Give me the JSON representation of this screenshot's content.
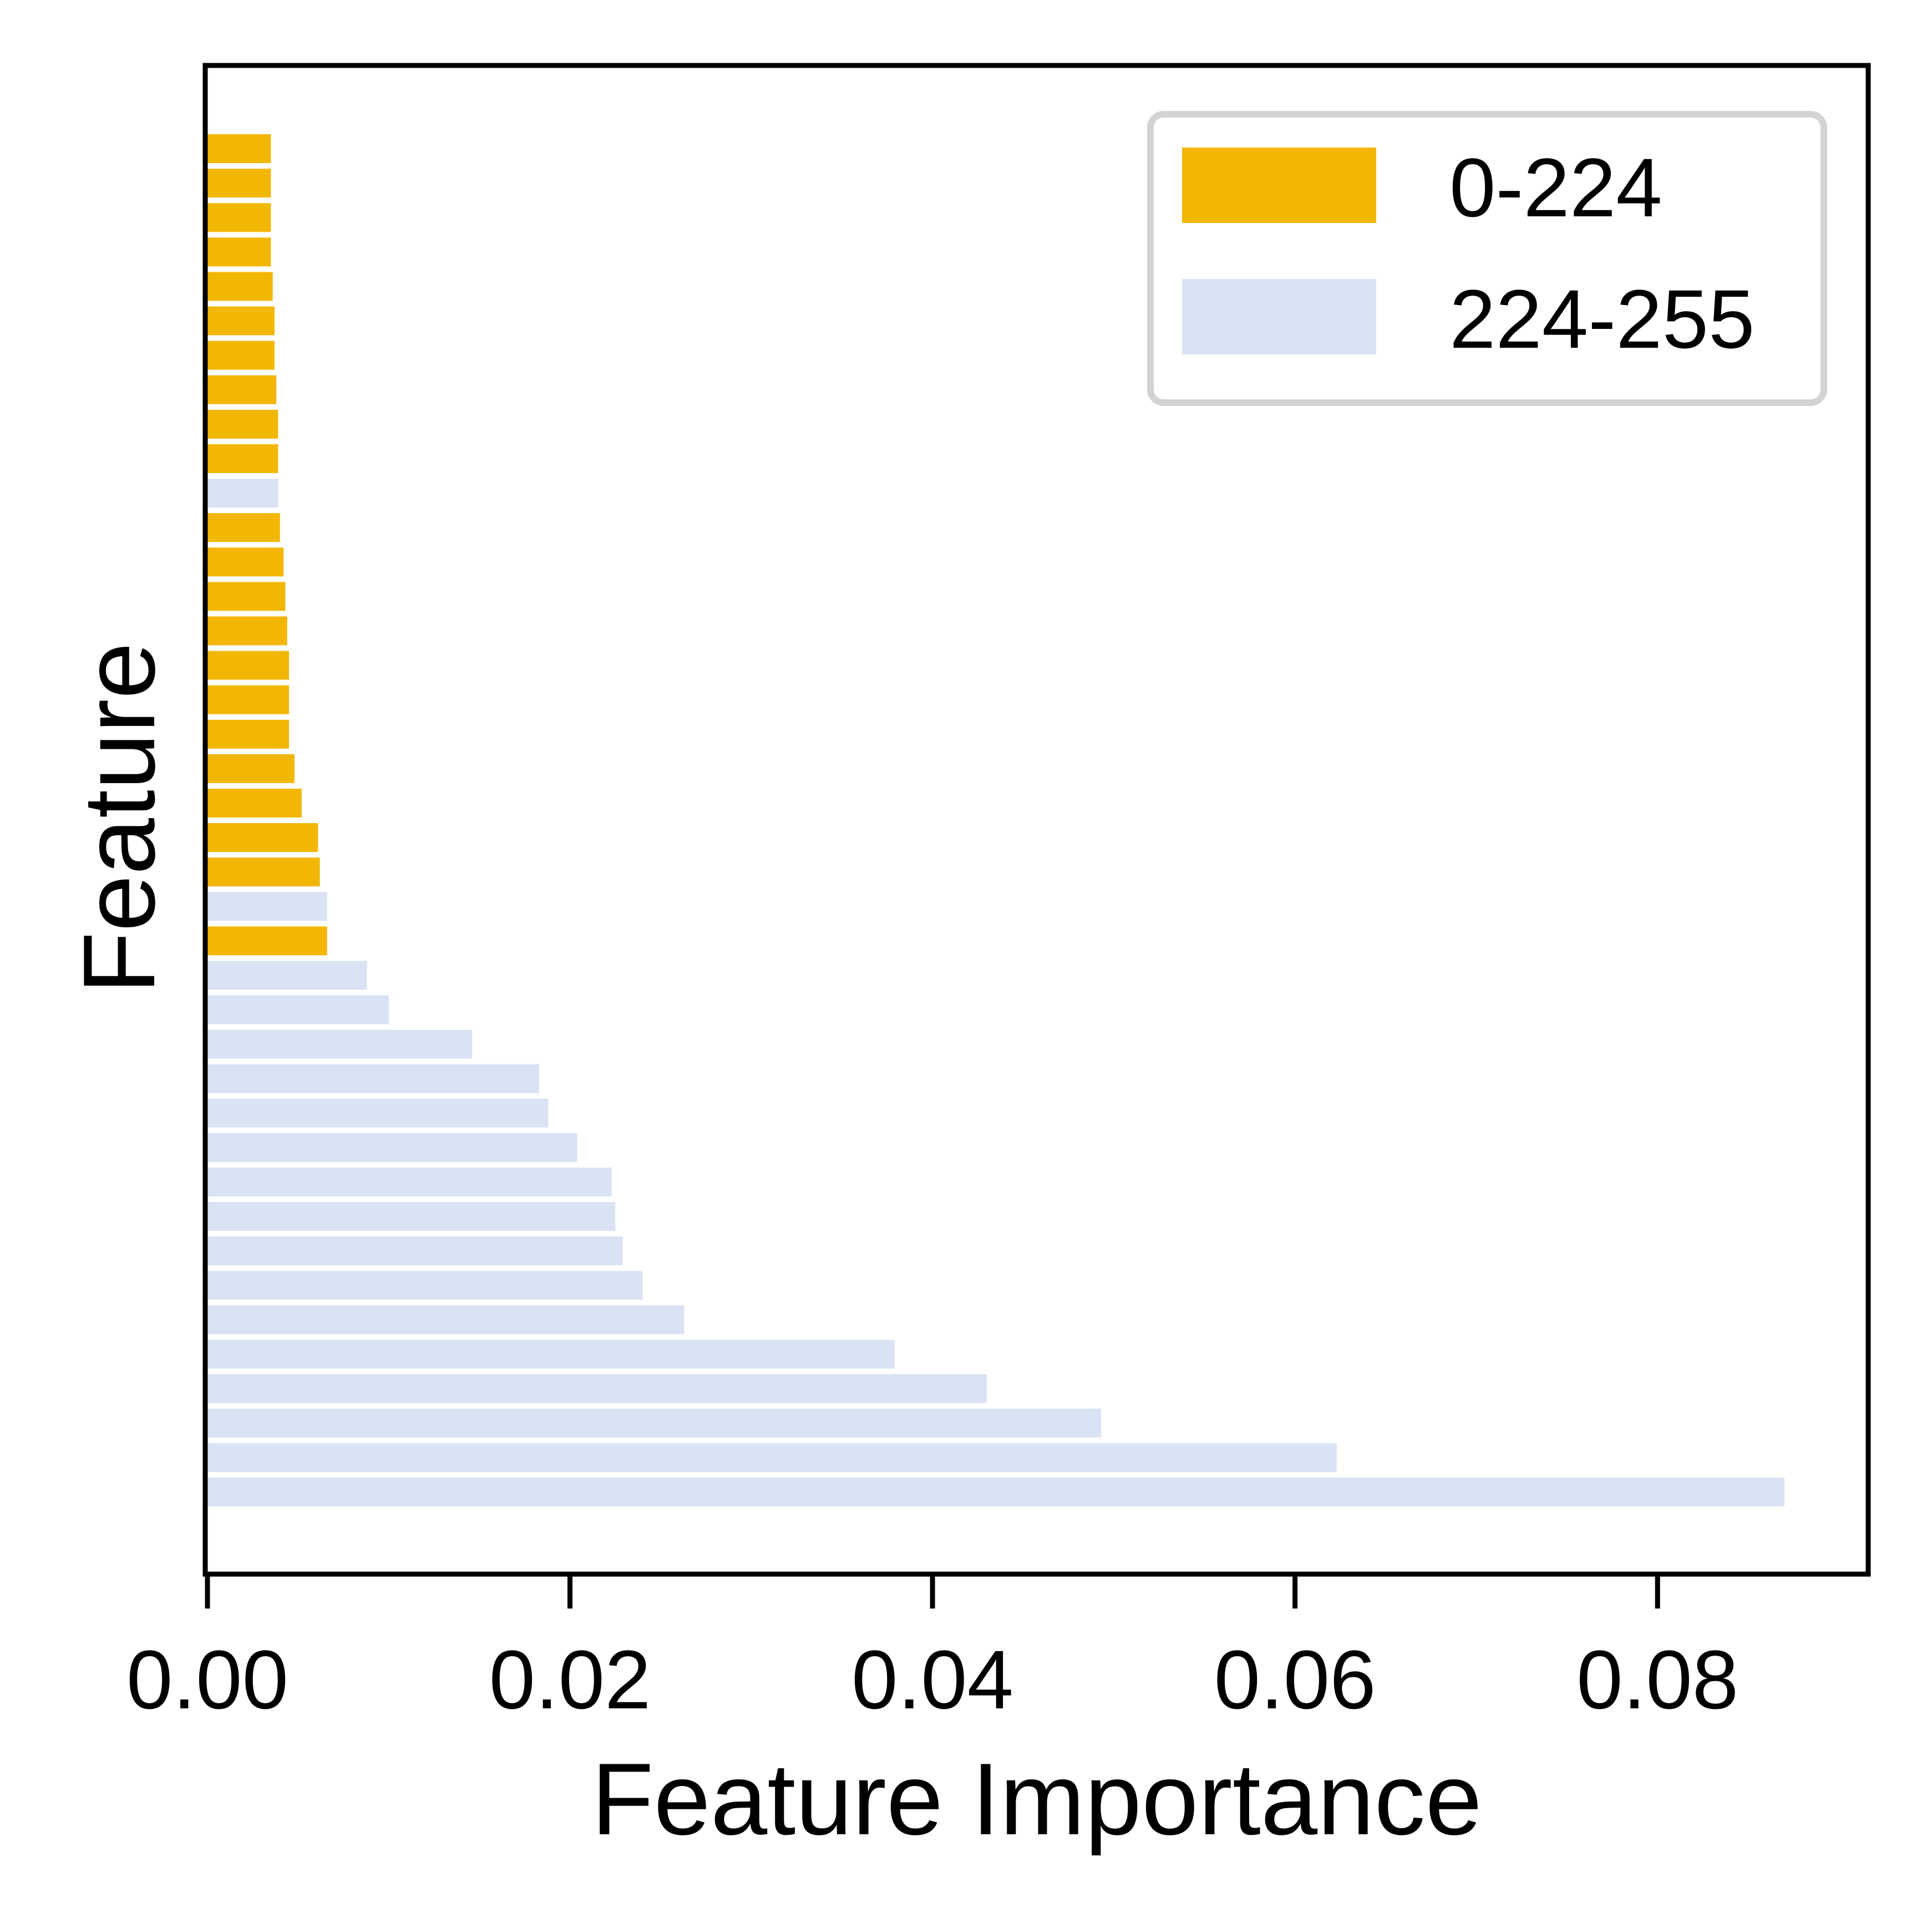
{
  "chart_data": {
    "type": "bar",
    "orientation": "horizontal",
    "title": "",
    "xlabel": "Feature Importance",
    "ylabel": "Feature",
    "xlim": [
      0,
      0.0915
    ],
    "xticks": [
      0.0,
      0.02,
      0.04,
      0.06,
      0.08
    ],
    "xtick_labels": [
      "0.00",
      "0.02",
      "0.04",
      "0.06",
      "0.08"
    ],
    "y_tick_labels_shown": false,
    "grid": false,
    "legend_position": "top-right",
    "series": [
      {
        "name": "0-224",
        "color": "#f2b705"
      },
      {
        "name": "224-255",
        "color": "#dae3f3"
      }
    ],
    "bars_top_to_bottom": [
      {
        "value": 0.0035,
        "group": 0
      },
      {
        "value": 0.0035,
        "group": 0
      },
      {
        "value": 0.0035,
        "group": 0
      },
      {
        "value": 0.0035,
        "group": 0
      },
      {
        "value": 0.0036,
        "group": 0
      },
      {
        "value": 0.0037,
        "group": 0
      },
      {
        "value": 0.0037,
        "group": 0
      },
      {
        "value": 0.0038,
        "group": 0
      },
      {
        "value": 0.0039,
        "group": 0
      },
      {
        "value": 0.0039,
        "group": 0
      },
      {
        "value": 0.0039,
        "group": 1
      },
      {
        "value": 0.004,
        "group": 0
      },
      {
        "value": 0.0042,
        "group": 0
      },
      {
        "value": 0.0043,
        "group": 0
      },
      {
        "value": 0.0044,
        "group": 0
      },
      {
        "value": 0.0045,
        "group": 0
      },
      {
        "value": 0.0045,
        "group": 0
      },
      {
        "value": 0.0045,
        "group": 0
      },
      {
        "value": 0.0048,
        "group": 0
      },
      {
        "value": 0.0052,
        "group": 0
      },
      {
        "value": 0.0061,
        "group": 0
      },
      {
        "value": 0.0062,
        "group": 0
      },
      {
        "value": 0.0066,
        "group": 1
      },
      {
        "value": 0.0066,
        "group": 0
      },
      {
        "value": 0.0088,
        "group": 1
      },
      {
        "value": 0.01,
        "group": 1
      },
      {
        "value": 0.0146,
        "group": 1
      },
      {
        "value": 0.0183,
        "group": 1
      },
      {
        "value": 0.0188,
        "group": 1
      },
      {
        "value": 0.0204,
        "group": 1
      },
      {
        "value": 0.0223,
        "group": 1
      },
      {
        "value": 0.0225,
        "group": 1
      },
      {
        "value": 0.0229,
        "group": 1
      },
      {
        "value": 0.024,
        "group": 1
      },
      {
        "value": 0.0263,
        "group": 1
      },
      {
        "value": 0.0379,
        "group": 1
      },
      {
        "value": 0.043,
        "group": 1
      },
      {
        "value": 0.0493,
        "group": 1
      },
      {
        "value": 0.0623,
        "group": 1
      },
      {
        "value": 0.087,
        "group": 1
      }
    ]
  }
}
